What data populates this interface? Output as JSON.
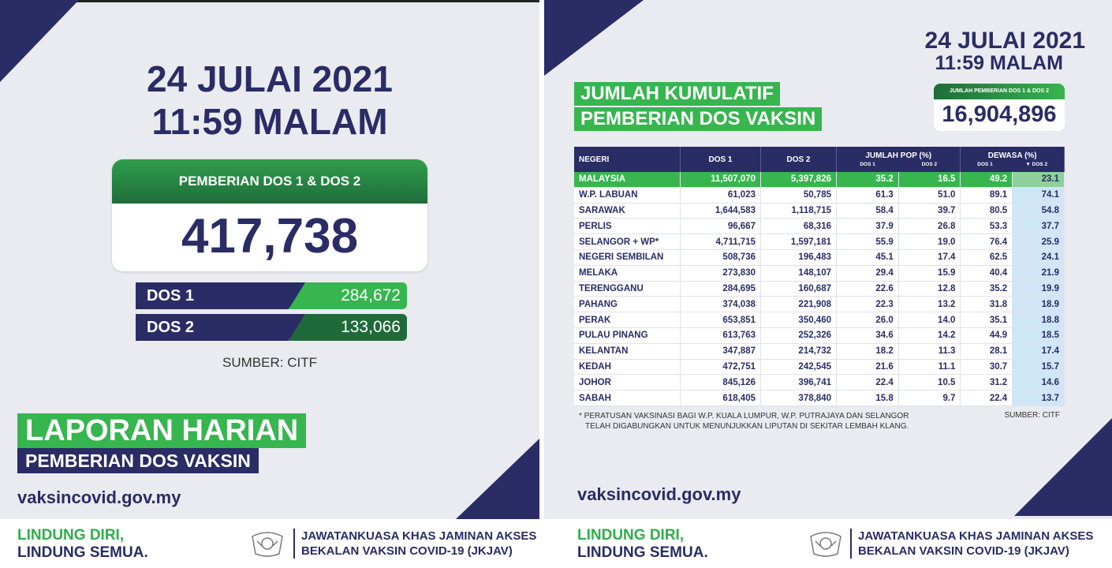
{
  "left": {
    "date": "24 JULAI 2021",
    "time": "11:59 MALAM",
    "card_title": "PEMBERIAN DOS 1 & DOS 2",
    "total": "417,738",
    "dos1_label": "DOS 1",
    "dos1_value": "284,672",
    "dos2_label": "DOS 2",
    "dos2_value": "133,066",
    "source": "SUMBER: CITF",
    "report_title": "LAPORAN HARIAN",
    "report_subtitle": "PEMBERIAN DOS VAKSIN",
    "url": "vaksincovid.gov.my"
  },
  "right": {
    "date": "24 JULAI 2021",
    "time": "11:59 MALAM",
    "title_line1": "JUMLAH KUMULATIF",
    "title_line2": "PEMBERIAN DOS VAKSIN",
    "total_label": "JUMLAH PEMBERIAN DOS 1 & DOS 2",
    "total_value": "16,904,896",
    "headers": {
      "negeri": "NEGERI",
      "dos1": "DOS 1",
      "dos2": "DOS 2",
      "jumlah_pop": "JUMLAH POP (%)",
      "dewasa": "DEWASA (%)",
      "sub_dos1": "DOS 1",
      "sub_dos2": "DOS 2",
      "sub_dos2_sorted": "▼ DOS 2"
    },
    "rows": [
      {
        "state": "MALAYSIA",
        "dos1": "11,507,070",
        "dos2": "5,397,826",
        "pop1": "35.2",
        "pop2": "16.5",
        "adult1": "49.2",
        "adult2": "23.1"
      },
      {
        "state": "W.P. LABUAN",
        "dos1": "61,023",
        "dos2": "50,785",
        "pop1": "61.3",
        "pop2": "51.0",
        "adult1": "89.1",
        "adult2": "74.1"
      },
      {
        "state": "SARAWAK",
        "dos1": "1,644,583",
        "dos2": "1,118,715",
        "pop1": "58.4",
        "pop2": "39.7",
        "adult1": "80.5",
        "adult2": "54.8"
      },
      {
        "state": "PERLIS",
        "dos1": "96,667",
        "dos2": "68,316",
        "pop1": "37.9",
        "pop2": "26.8",
        "adult1": "53.3",
        "adult2": "37.7"
      },
      {
        "state": "SELANGOR + WP*",
        "dos1": "4,711,715",
        "dos2": "1,597,181",
        "pop1": "55.9",
        "pop2": "19.0",
        "adult1": "76.4",
        "adult2": "25.9"
      },
      {
        "state": "NEGERI SEMBILAN",
        "dos1": "508,736",
        "dos2": "196,483",
        "pop1": "45.1",
        "pop2": "17.4",
        "adult1": "62.5",
        "adult2": "24.1"
      },
      {
        "state": "MELAKA",
        "dos1": "273,830",
        "dos2": "148,107",
        "pop1": "29.4",
        "pop2": "15.9",
        "adult1": "40.4",
        "adult2": "21.9"
      },
      {
        "state": "TERENGGANU",
        "dos1": "284,695",
        "dos2": "160,687",
        "pop1": "22.6",
        "pop2": "12.8",
        "adult1": "35.2",
        "adult2": "19.9"
      },
      {
        "state": "PAHANG",
        "dos1": "374,038",
        "dos2": "221,908",
        "pop1": "22.3",
        "pop2": "13.2",
        "adult1": "31.8",
        "adult2": "18.9"
      },
      {
        "state": "PERAK",
        "dos1": "653,851",
        "dos2": "350,460",
        "pop1": "26.0",
        "pop2": "14.0",
        "adult1": "35.1",
        "adult2": "18.8"
      },
      {
        "state": "PULAU PINANG",
        "dos1": "613,763",
        "dos2": "252,326",
        "pop1": "34.6",
        "pop2": "14.2",
        "adult1": "44.9",
        "adult2": "18.5"
      },
      {
        "state": "KELANTAN",
        "dos1": "347,887",
        "dos2": "214,732",
        "pop1": "18.2",
        "pop2": "11.3",
        "adult1": "28.1",
        "adult2": "17.4"
      },
      {
        "state": "KEDAH",
        "dos1": "472,751",
        "dos2": "242,545",
        "pop1": "21.6",
        "pop2": "11.1",
        "adult1": "30.7",
        "adult2": "15.7"
      },
      {
        "state": "JOHOR",
        "dos1": "845,126",
        "dos2": "396,741",
        "pop1": "22.4",
        "pop2": "10.5",
        "adult1": "31.2",
        "adult2": "14.6"
      },
      {
        "state": "SABAH",
        "dos1": "618,405",
        "dos2": "378,840",
        "pop1": "15.8",
        "pop2": "9.7",
        "adult1": "22.4",
        "adult2": "13.7"
      }
    ],
    "note_line1": "* PERATUSAN VAKSINASI BAGI W.P. KUALA LUMPUR, W.P. PUTRAJAYA DAN SELANGOR",
    "note_line2": "TELAH DIGABUNGKAN UNTUK MENUNJUKKAN LIPUTAN DI SEKITAR LEMBAH KLANG.",
    "source": "SUMBER: CITF",
    "url": "vaksincovid.gov.my"
  },
  "footer": {
    "slogan_line1": "LINDUNG DIRI,",
    "slogan_line2": "LINDUNG SEMUA.",
    "agency_line1": "JAWATANKUASA KHAS JAMINAN AKSES",
    "agency_line2": "BEKALAN VAKSIN COVID-19 (JKJAV)",
    "crest_icon": "coat-of-arms-icon"
  },
  "colors": {
    "navy": "#2a2c66",
    "green": "#37b54f",
    "dark_green": "#1e6b39",
    "highlight": "#cfe6f7"
  }
}
